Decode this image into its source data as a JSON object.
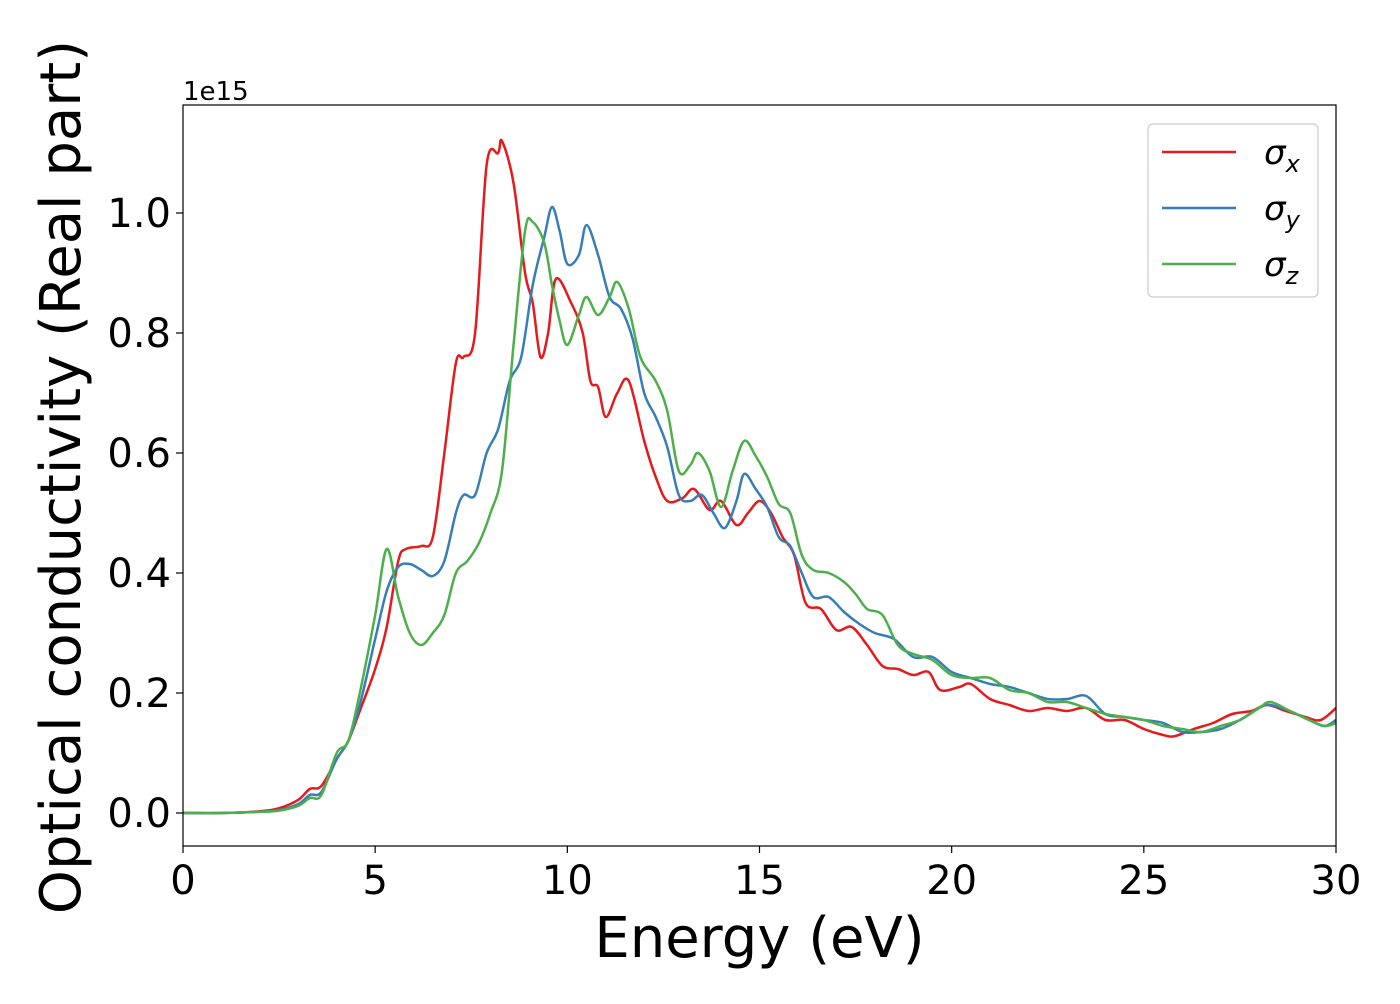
{
  "chart_data": {
    "type": "line",
    "title": "",
    "xlabel": "Energy (eV)",
    "ylabel": "Optical conductivity (Real part)",
    "y_offset_label": "1e15",
    "xlim": [
      0,
      30
    ],
    "ylim": [
      -0.055,
      1.18
    ],
    "xticks": [
      0,
      5,
      10,
      15,
      20,
      25,
      30
    ],
    "yticks": [
      0.0,
      0.2,
      0.4,
      0.6,
      0.8,
      1.0
    ],
    "ytick_labels": [
      "0.0",
      "0.2",
      "0.4",
      "0.6",
      "0.8",
      "1.0"
    ],
    "grid": false,
    "legend_position": "upper-right",
    "series": [
      {
        "name": "σx",
        "symbol": "σ",
        "subscript": "x",
        "color": "#e41a1c",
        "points": [
          [
            0,
            0
          ],
          [
            1,
            0
          ],
          [
            2,
            0.003
          ],
          [
            2.5,
            0.008
          ],
          [
            3,
            0.022
          ],
          [
            3.3,
            0.04
          ],
          [
            3.6,
            0.045
          ],
          [
            4,
            0.09
          ],
          [
            4.3,
            0.12
          ],
          [
            4.6,
            0.17
          ],
          [
            5,
            0.24
          ],
          [
            5.3,
            0.31
          ],
          [
            5.6,
            0.42
          ],
          [
            5.8,
            0.44
          ],
          [
            6.2,
            0.445
          ],
          [
            6.5,
            0.46
          ],
          [
            6.8,
            0.6
          ],
          [
            7.1,
            0.75
          ],
          [
            7.3,
            0.76
          ],
          [
            7.6,
            0.8
          ],
          [
            7.9,
            1.08
          ],
          [
            8.2,
            1.1
          ],
          [
            8.3,
            1.12
          ],
          [
            8.6,
            1.05
          ],
          [
            8.9,
            0.9
          ],
          [
            9.1,
            0.85
          ],
          [
            9.3,
            0.76
          ],
          [
            9.5,
            0.8
          ],
          [
            9.7,
            0.89
          ],
          [
            10.1,
            0.85
          ],
          [
            10.4,
            0.8
          ],
          [
            10.6,
            0.72
          ],
          [
            10.8,
            0.71
          ],
          [
            11,
            0.66
          ],
          [
            11.3,
            0.7
          ],
          [
            11.6,
            0.72
          ],
          [
            12,
            0.62
          ],
          [
            12.3,
            0.56
          ],
          [
            12.6,
            0.52
          ],
          [
            13,
            0.525
          ],
          [
            13.3,
            0.54
          ],
          [
            13.7,
            0.505
          ],
          [
            14,
            0.52
          ],
          [
            14.4,
            0.48
          ],
          [
            14.7,
            0.5
          ],
          [
            15,
            0.52
          ],
          [
            15.3,
            0.5
          ],
          [
            15.6,
            0.46
          ],
          [
            15.9,
            0.43
          ],
          [
            16.2,
            0.35
          ],
          [
            16.6,
            0.34
          ],
          [
            17,
            0.305
          ],
          [
            17.4,
            0.31
          ],
          [
            17.8,
            0.28
          ],
          [
            18.2,
            0.245
          ],
          [
            18.6,
            0.24
          ],
          [
            19,
            0.23
          ],
          [
            19.4,
            0.235
          ],
          [
            19.7,
            0.205
          ],
          [
            20.2,
            0.21
          ],
          [
            20.5,
            0.215
          ],
          [
            21,
            0.19
          ],
          [
            21.5,
            0.18
          ],
          [
            22,
            0.17
          ],
          [
            22.5,
            0.175
          ],
          [
            23,
            0.17
          ],
          [
            23.5,
            0.175
          ],
          [
            24,
            0.155
          ],
          [
            24.5,
            0.155
          ],
          [
            25,
            0.14
          ],
          [
            25.5,
            0.13
          ],
          [
            25.8,
            0.128
          ],
          [
            26.3,
            0.14
          ],
          [
            26.8,
            0.15
          ],
          [
            27.3,
            0.165
          ],
          [
            27.8,
            0.17
          ],
          [
            28.2,
            0.18
          ],
          [
            28.7,
            0.17
          ],
          [
            29.2,
            0.16
          ],
          [
            29.6,
            0.155
          ],
          [
            30,
            0.175
          ]
        ]
      },
      {
        "name": "σy",
        "symbol": "σ",
        "subscript": "y",
        "color": "#377eb8",
        "points": [
          [
            0,
            0
          ],
          [
            1,
            0
          ],
          [
            2,
            0.002
          ],
          [
            2.5,
            0.005
          ],
          [
            3,
            0.015
          ],
          [
            3.3,
            0.03
          ],
          [
            3.6,
            0.035
          ],
          [
            4,
            0.09
          ],
          [
            4.3,
            0.12
          ],
          [
            4.6,
            0.18
          ],
          [
            5,
            0.29
          ],
          [
            5.3,
            0.37
          ],
          [
            5.6,
            0.41
          ],
          [
            5.9,
            0.415
          ],
          [
            6.2,
            0.405
          ],
          [
            6.5,
            0.395
          ],
          [
            6.8,
            0.42
          ],
          [
            7.1,
            0.5
          ],
          [
            7.3,
            0.53
          ],
          [
            7.6,
            0.53
          ],
          [
            7.9,
            0.6
          ],
          [
            8.2,
            0.64
          ],
          [
            8.5,
            0.72
          ],
          [
            8.8,
            0.76
          ],
          [
            9.1,
            0.88
          ],
          [
            9.4,
            0.96
          ],
          [
            9.6,
            1.01
          ],
          [
            9.8,
            0.97
          ],
          [
            10,
            0.915
          ],
          [
            10.3,
            0.93
          ],
          [
            10.5,
            0.98
          ],
          [
            10.8,
            0.93
          ],
          [
            11.1,
            0.86
          ],
          [
            11.4,
            0.84
          ],
          [
            11.7,
            0.79
          ],
          [
            12,
            0.7
          ],
          [
            12.3,
            0.66
          ],
          [
            12.6,
            0.61
          ],
          [
            12.9,
            0.53
          ],
          [
            13.2,
            0.52
          ],
          [
            13.5,
            0.53
          ],
          [
            13.8,
            0.5
          ],
          [
            14.1,
            0.475
          ],
          [
            14.4,
            0.52
          ],
          [
            14.6,
            0.565
          ],
          [
            14.9,
            0.54
          ],
          [
            15.2,
            0.51
          ],
          [
            15.5,
            0.46
          ],
          [
            15.8,
            0.445
          ],
          [
            16.1,
            0.4
          ],
          [
            16.4,
            0.36
          ],
          [
            16.8,
            0.36
          ],
          [
            17.2,
            0.335
          ],
          [
            17.6,
            0.315
          ],
          [
            18,
            0.3
          ],
          [
            18.5,
            0.29
          ],
          [
            19,
            0.26
          ],
          [
            19.5,
            0.26
          ],
          [
            20,
            0.235
          ],
          [
            20.5,
            0.225
          ],
          [
            21,
            0.215
          ],
          [
            21.5,
            0.21
          ],
          [
            22,
            0.2
          ],
          [
            22.5,
            0.19
          ],
          [
            23,
            0.19
          ],
          [
            23.5,
            0.195
          ],
          [
            24,
            0.165
          ],
          [
            24.5,
            0.16
          ],
          [
            25,
            0.155
          ],
          [
            25.5,
            0.15
          ],
          [
            26,
            0.135
          ],
          [
            26.5,
            0.135
          ],
          [
            27,
            0.14
          ],
          [
            27.5,
            0.155
          ],
          [
            28,
            0.175
          ],
          [
            28.3,
            0.18
          ],
          [
            28.8,
            0.17
          ],
          [
            29.3,
            0.155
          ],
          [
            29.7,
            0.145
          ],
          [
            30,
            0.155
          ]
        ]
      },
      {
        "name": "σz",
        "symbol": "σ",
        "subscript": "z",
        "color": "#4daf4a",
        "points": [
          [
            0,
            0
          ],
          [
            1,
            0
          ],
          [
            2,
            0.002
          ],
          [
            2.5,
            0.004
          ],
          [
            3,
            0.012
          ],
          [
            3.3,
            0.025
          ],
          [
            3.6,
            0.03
          ],
          [
            4,
            0.1
          ],
          [
            4.3,
            0.12
          ],
          [
            4.6,
            0.2
          ],
          [
            5,
            0.33
          ],
          [
            5.3,
            0.44
          ],
          [
            5.6,
            0.36
          ],
          [
            5.9,
            0.3
          ],
          [
            6.2,
            0.28
          ],
          [
            6.5,
            0.3
          ],
          [
            6.8,
            0.33
          ],
          [
            7.1,
            0.4
          ],
          [
            7.4,
            0.42
          ],
          [
            7.7,
            0.45
          ],
          [
            8,
            0.5
          ],
          [
            8.3,
            0.57
          ],
          [
            8.6,
            0.78
          ],
          [
            8.9,
            0.97
          ],
          [
            9.1,
            0.985
          ],
          [
            9.4,
            0.95
          ],
          [
            9.6,
            0.88
          ],
          [
            9.8,
            0.82
          ],
          [
            10,
            0.78
          ],
          [
            10.3,
            0.83
          ],
          [
            10.5,
            0.86
          ],
          [
            10.8,
            0.83
          ],
          [
            11.1,
            0.86
          ],
          [
            11.3,
            0.885
          ],
          [
            11.6,
            0.84
          ],
          [
            11.9,
            0.76
          ],
          [
            12.3,
            0.72
          ],
          [
            12.6,
            0.67
          ],
          [
            12.9,
            0.57
          ],
          [
            13.2,
            0.58
          ],
          [
            13.4,
            0.6
          ],
          [
            13.7,
            0.57
          ],
          [
            14,
            0.51
          ],
          [
            14.3,
            0.57
          ],
          [
            14.6,
            0.62
          ],
          [
            14.9,
            0.595
          ],
          [
            15.2,
            0.56
          ],
          [
            15.5,
            0.515
          ],
          [
            15.8,
            0.5
          ],
          [
            16.1,
            0.43
          ],
          [
            16.4,
            0.405
          ],
          [
            16.8,
            0.4
          ],
          [
            17.2,
            0.385
          ],
          [
            17.5,
            0.365
          ],
          [
            17.8,
            0.34
          ],
          [
            18.2,
            0.33
          ],
          [
            18.6,
            0.28
          ],
          [
            19,
            0.265
          ],
          [
            19.5,
            0.255
          ],
          [
            20,
            0.23
          ],
          [
            20.5,
            0.225
          ],
          [
            21,
            0.225
          ],
          [
            21.5,
            0.205
          ],
          [
            22,
            0.2
          ],
          [
            22.5,
            0.185
          ],
          [
            23,
            0.185
          ],
          [
            23.5,
            0.175
          ],
          [
            24,
            0.165
          ],
          [
            24.5,
            0.16
          ],
          [
            25,
            0.155
          ],
          [
            25.5,
            0.145
          ],
          [
            26,
            0.14
          ],
          [
            26.5,
            0.135
          ],
          [
            27,
            0.145
          ],
          [
            27.5,
            0.155
          ],
          [
            28,
            0.175
          ],
          [
            28.3,
            0.185
          ],
          [
            28.8,
            0.17
          ],
          [
            29.3,
            0.155
          ],
          [
            29.7,
            0.145
          ],
          [
            30,
            0.15
          ]
        ]
      }
    ]
  }
}
